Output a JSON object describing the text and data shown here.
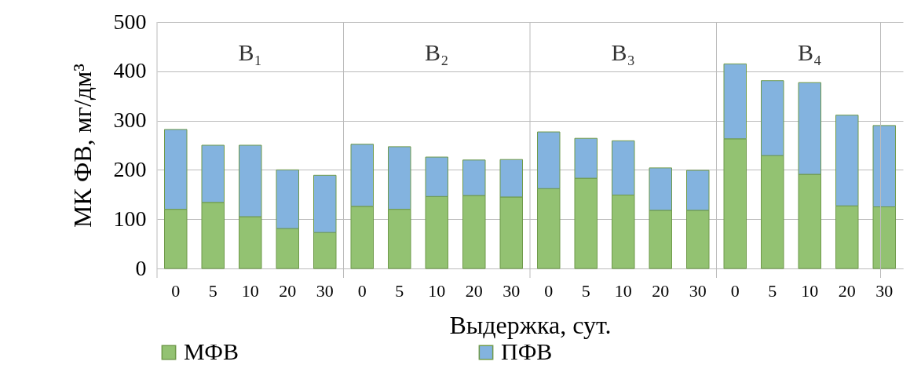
{
  "chart_data": {
    "type": "bar",
    "stacked": true,
    "xlabel": "Выдержка, сут.",
    "ylabel": "МК ФВ, мг/дм³",
    "categories": [
      "0",
      "5",
      "10",
      "20",
      "30",
      "0",
      "5",
      "10",
      "20",
      "30",
      "0",
      "5",
      "10",
      "20",
      "30",
      "0",
      "5",
      "10",
      "20",
      "30"
    ],
    "annotations": [
      "В₁",
      "В₂",
      "В₃",
      "В₄"
    ],
    "series": [
      {
        "name": "МФВ",
        "color": "#93c272",
        "values": [
          120,
          134,
          105,
          81,
          73,
          126,
          120,
          146,
          148,
          145,
          162,
          183,
          149,
          118,
          118,
          263,
          229,
          191,
          127,
          125
        ]
      },
      {
        "name": "ПФВ",
        "color": "#83b3df",
        "values": [
          162,
          116,
          145,
          119,
          116,
          126,
          127,
          80,
          72,
          76,
          115,
          81,
          110,
          86,
          81,
          152,
          152,
          186,
          184,
          165
        ]
      }
    ],
    "ylim": [
      0,
      500
    ],
    "yticks": [
      0,
      100,
      200,
      300,
      400,
      500
    ],
    "grid": true,
    "legend": "bottom"
  }
}
